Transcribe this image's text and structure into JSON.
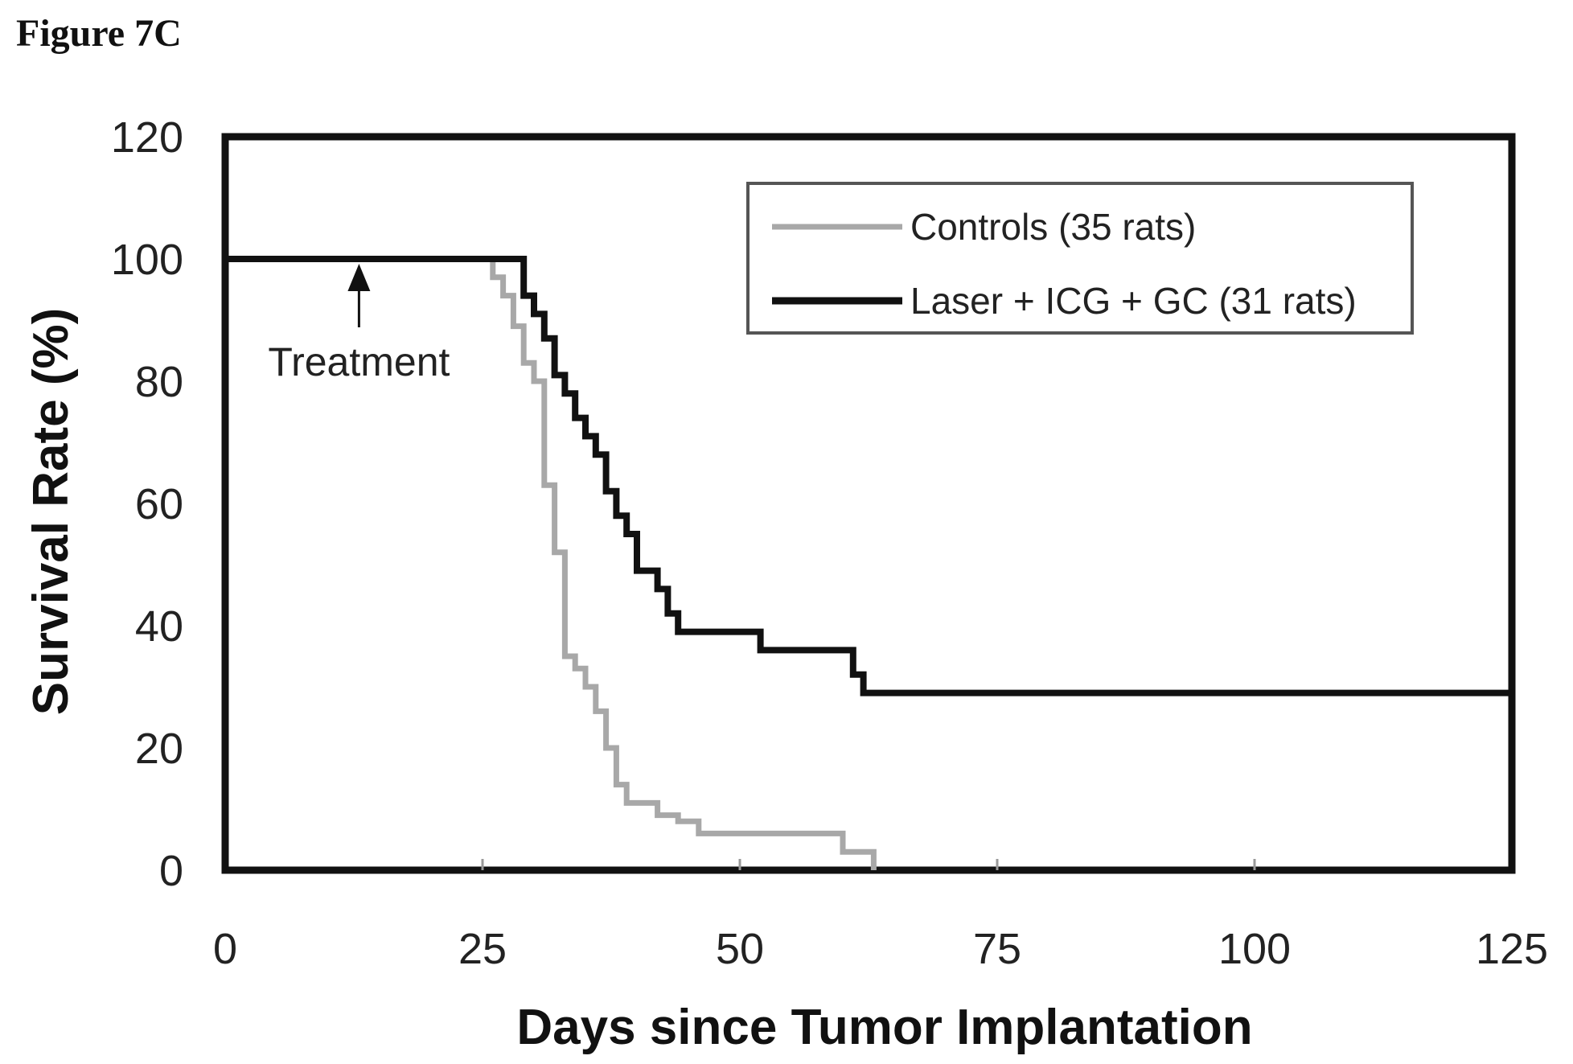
{
  "figure_label": "Figure 7C",
  "chart_data": {
    "type": "line",
    "step": true,
    "title": "",
    "xlabel": "Days since Tumor Implantation",
    "ylabel": "Survival Rate (%)",
    "xlim": [
      0,
      125
    ],
    "ylim": [
      0,
      120
    ],
    "xticks": [
      0,
      25,
      50,
      75,
      100,
      125
    ],
    "yticks": [
      0,
      20,
      40,
      60,
      80,
      100,
      120
    ],
    "grid": false,
    "legend_position": "top-right",
    "series": [
      {
        "name": "Controls (35 rats)",
        "color": "#a8a8a8",
        "x": [
          0,
          26,
          27,
          28,
          29,
          30,
          31,
          32,
          33,
          34,
          35,
          36,
          37,
          38,
          39,
          40,
          42,
          44,
          46,
          60,
          61,
          63
        ],
        "y": [
          100,
          97,
          94,
          89,
          83,
          80,
          63,
          52,
          35,
          33,
          30,
          26,
          20,
          14,
          11,
          11,
          9,
          8,
          6,
          3,
          3,
          0
        ]
      },
      {
        "name": "Laser + ICG + GC (31 rats)",
        "color": "#111111",
        "x": [
          0,
          29,
          30,
          31,
          32,
          33,
          34,
          35,
          36,
          37,
          38,
          39,
          40,
          41,
          42,
          43,
          44,
          45,
          52,
          55,
          61,
          62,
          125
        ],
        "y": [
          100,
          94,
          91,
          87,
          81,
          78,
          74,
          71,
          68,
          62,
          58,
          55,
          49,
          49,
          46,
          42,
          39,
          39,
          36,
          36,
          32,
          29,
          29
        ]
      }
    ],
    "annotations": [
      {
        "text": "Treatment",
        "x": 13,
        "y": 100
      }
    ]
  }
}
